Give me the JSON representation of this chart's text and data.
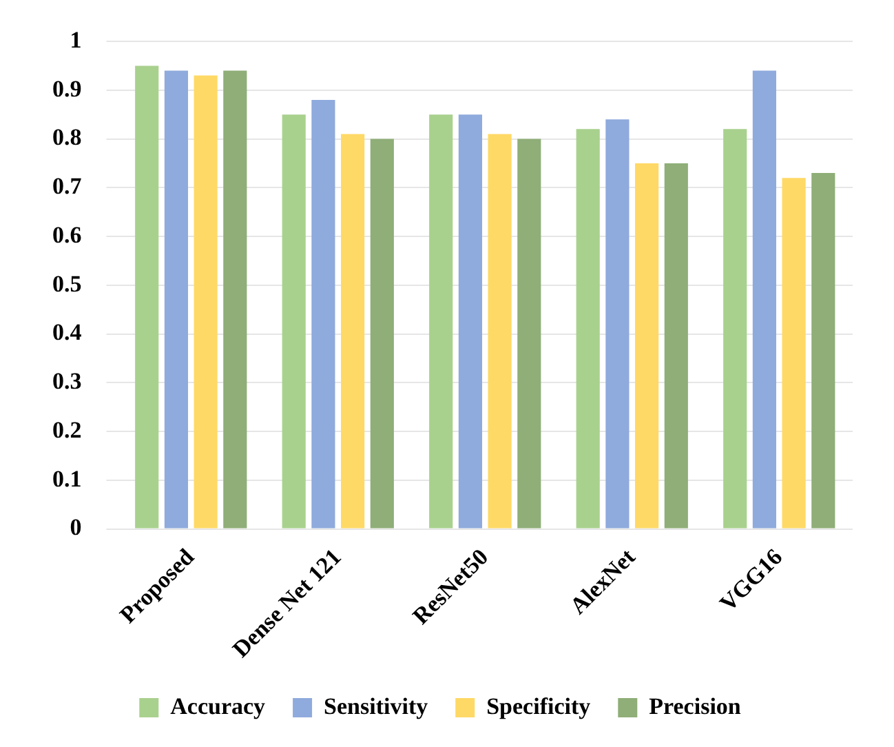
{
  "chart_data": {
    "type": "bar",
    "categories": [
      "Proposed",
      "Dense Net 121",
      "ResNet50",
      "AlexNet",
      "VGG16"
    ],
    "series": [
      {
        "name": "Accuracy",
        "color": "#a9d18e",
        "values": [
          0.95,
          0.85,
          0.85,
          0.82,
          0.82
        ]
      },
      {
        "name": "Sensitivity",
        "color": "#8faadc",
        "values": [
          0.94,
          0.88,
          0.85,
          0.84,
          0.94
        ]
      },
      {
        "name": "Specificity",
        "color": "#ffd966",
        "values": [
          0.93,
          0.81,
          0.81,
          0.75,
          0.72
        ]
      },
      {
        "name": "Precision",
        "color": "#8fae78",
        "values": [
          0.94,
          0.8,
          0.8,
          0.75,
          0.73
        ]
      }
    ],
    "ylim": [
      0,
      1
    ],
    "yticks": [
      0,
      0.1,
      0.2,
      0.3,
      0.4,
      0.5,
      0.6,
      0.7,
      0.8,
      0.9,
      1
    ],
    "grid": "y",
    "legend": "bottom"
  }
}
